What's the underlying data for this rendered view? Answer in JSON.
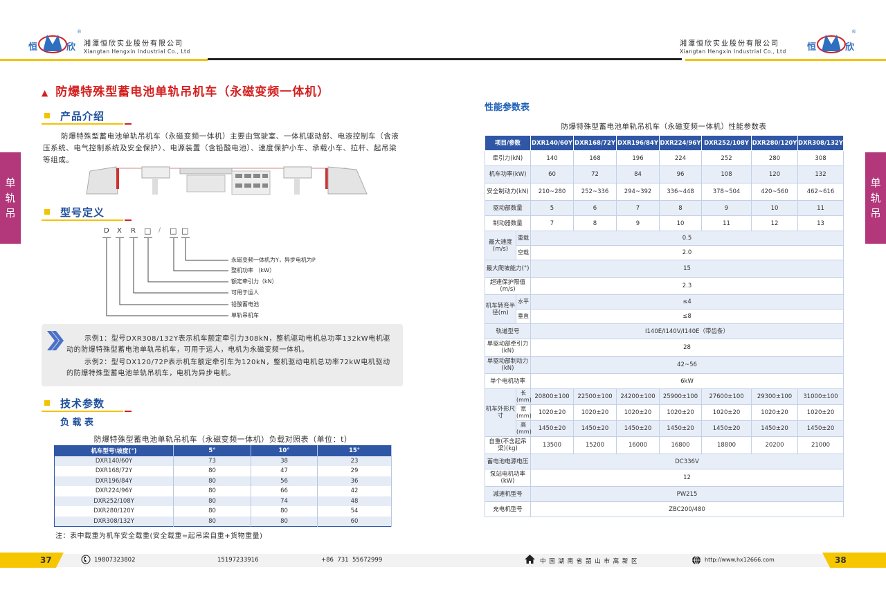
{
  "header": {
    "company_cn": "湘潭恒欣实业股份有限公司",
    "company_en": "Xiangtan Hengxin Industrial Co., Ltd",
    "logo_text": [
      "恒",
      "欣"
    ],
    "registered_mark": "®"
  },
  "side_tab": {
    "label": [
      "单",
      "轨",
      "吊"
    ]
  },
  "left": {
    "title": "防爆特殊型蓄电池单轨吊机车（永磁变频一体机）",
    "intro_heading": "产品介绍",
    "intro_text": "防爆特殊型蓄电池单轨吊机车（永磁变频一体机）主要由驾驶室、一体机驱动部、电液控制车（含液压系统、电气控制系统及安全保护）、电源装置（含铅酸电池）、速度保护小车、承载小车、拉杆、起吊梁等组成。",
    "model_heading": "型号定义",
    "model_code": [
      "D",
      "X",
      "R",
      "□",
      "/",
      "□",
      "□"
    ],
    "model_legend": [
      "永磁变频一体机为Y，异步电机为P",
      "整机功率 （kW）",
      "额定牵引力（kN）",
      "可用于运人",
      "铅酸蓄电池",
      "单轨吊机车"
    ],
    "example1": "示例1：型号DXR308/132Y表示机车额定牵引力308kN，整机驱动电机总功率132kW电机驱动的防爆特殊型蓄电池单轨吊机车，可用于运人，电机为永磁变频一体机。",
    "example2": "示例2：型号DX120/72P表示机车额定牵引车为120kN，整机驱动电机总功率72kW电机驱动的防爆特殊型蓄电池单轨吊机车，电机为异步电机。",
    "tech_heading": "技术参数",
    "load_heading": "负 载 表",
    "load_table": {
      "caption": "防爆特殊型蓄电池单轨吊机车（永磁变频一体机）负载对照表（单位：t）",
      "headers": [
        "机车型号\\坡度(°)",
        "5°",
        "10°",
        "15°"
      ],
      "rows": [
        [
          "DXR140/60Y",
          "73",
          "38",
          "23"
        ],
        [
          "DXR168/72Y",
          "80",
          "47",
          "29"
        ],
        [
          "DXR196/84Y",
          "80",
          "56",
          "36"
        ],
        [
          "DXR224/96Y",
          "80",
          "66",
          "42"
        ],
        [
          "DXR252/108Y",
          "80",
          "74",
          "48"
        ],
        [
          "DXR280/120Y",
          "80",
          "80",
          "54"
        ],
        [
          "DXR308/132Y",
          "80",
          "80",
          "60"
        ]
      ]
    },
    "note": "注：表中载重为机车安全载重(安全载重=起吊梁自重+货物重量)"
  },
  "right": {
    "heading": "性能参数表",
    "caption": "防爆特殊型蓄电池单轨吊机车（永磁变频一体机）性能参数表",
    "headers": [
      "项目/参数",
      "DXR140/60Y",
      "DXR168/72Y",
      "DXR196/84Y",
      "DXR224/96Y",
      "DXR252/108Y",
      "DXR280/120Y",
      "DXR308/132Y"
    ],
    "rows": [
      {
        "label": "牵引力(kN)",
        "subs": [
          {
            "cells": [
              "140",
              "168",
              "196",
              "224",
              "252",
              "280",
              "308"
            ]
          }
        ]
      },
      {
        "label": "机车功率(kW)",
        "subs": [
          {
            "cells": [
              "60",
              "72",
              "84",
              "96",
              "108",
              "120",
              "132"
            ]
          }
        ]
      },
      {
        "label": "安全制动力(kN)",
        "subs": [
          {
            "cells": [
              "210~280",
              "252~336",
              "294~392",
              "336~448",
              "378~504",
              "420~560",
              "462~616"
            ]
          }
        ]
      },
      {
        "label": "驱动部数量",
        "subs": [
          {
            "cells": [
              "5",
              "6",
              "7",
              "8",
              "9",
              "10",
              "11"
            ]
          }
        ]
      },
      {
        "label": "制动器数量",
        "subs": [
          {
            "cells": [
              "7",
              "8",
              "9",
              "10",
              "11",
              "12",
              "13"
            ]
          }
        ]
      },
      {
        "label": "最大速度(m/s)",
        "subs": [
          {
            "sub": "重载",
            "value": "0.5"
          },
          {
            "sub": "空载",
            "value": "2.0"
          }
        ]
      },
      {
        "label": "最大爬坡能力(°)",
        "subs": [
          {
            "value": "15"
          }
        ]
      },
      {
        "label": "超速保护限值(m/s)",
        "subs": [
          {
            "value": "2.3"
          }
        ]
      },
      {
        "label": "机车转弯半径(m)",
        "subs": [
          {
            "sub": "水平",
            "value": "≤4"
          },
          {
            "sub": "垂直",
            "value": "≤8"
          }
        ]
      },
      {
        "label": "轨道型号",
        "subs": [
          {
            "value": "I140E/I140V/I140E（带齿条）"
          }
        ]
      },
      {
        "label": "单驱动部牵引力(kN)",
        "subs": [
          {
            "value": "28"
          }
        ]
      },
      {
        "label": "单驱动部制动力(kN)",
        "subs": [
          {
            "value": "42~56"
          }
        ]
      },
      {
        "label": "单个电机功率",
        "subs": [
          {
            "value": "6kW"
          }
        ]
      },
      {
        "label": "机车外形尺寸",
        "subs": [
          {
            "sub": "长(mm)",
            "cells": [
              "20800±100",
              "22500±100",
              "24200±100",
              "25900±100",
              "27600±100",
              "29300±100",
              "31000±100"
            ]
          },
          {
            "sub": "宽(mm)",
            "cells": [
              "1020±20",
              "1020±20",
              "1020±20",
              "1020±20",
              "1020±20",
              "1020±20",
              "1020±20"
            ]
          },
          {
            "sub": "高(mm)",
            "cells": [
              "1450±20",
              "1450±20",
              "1450±20",
              "1450±20",
              "1450±20",
              "1450±20",
              "1450±20"
            ]
          }
        ]
      },
      {
        "label": "自重(不含起吊梁)(kg)",
        "subs": [
          {
            "cells": [
              "13500",
              "15200",
              "16000",
              "16800",
              "18800",
              "20200",
              "21000"
            ]
          }
        ]
      },
      {
        "label": "蓄电池电源电压",
        "subs": [
          {
            "value": "DC336V"
          }
        ]
      },
      {
        "label": "泵站电机功率(kW)",
        "subs": [
          {
            "value": "12"
          }
        ]
      },
      {
        "label": "减速机型号",
        "subs": [
          {
            "value": "PW215"
          }
        ]
      },
      {
        "label": "充电机型号",
        "subs": [
          {
            "value": "ZBC200/480"
          }
        ]
      }
    ]
  },
  "footer": {
    "page_left": "37",
    "page_right": "38",
    "phone1": "19807323802",
    "phone2": "15197233916",
    "phone3": "+86  731  55672999",
    "address": "中 国 湖 南 省 韶 山 市 高 新 区",
    "website": "http://www.hx12666.com",
    "icons": [
      "phone-icon",
      "home-icon",
      "globe-icon"
    ]
  },
  "colors": {
    "accent_red": "#d4201f",
    "brand_blue": "#2f57a6",
    "yellow": "#f3c300",
    "side_tab": "#b2377b"
  }
}
